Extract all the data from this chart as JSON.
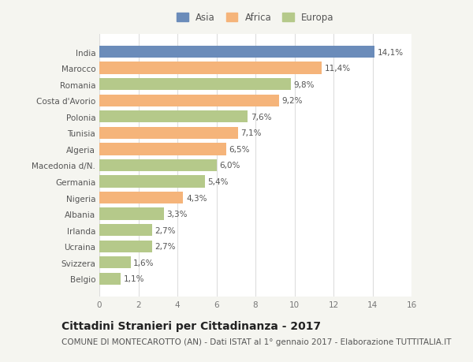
{
  "categories": [
    "India",
    "Marocco",
    "Romania",
    "Costa d'Avorio",
    "Polonia",
    "Tunisia",
    "Algeria",
    "Macedonia d/N.",
    "Germania",
    "Nigeria",
    "Albania",
    "Irlanda",
    "Ucraina",
    "Svizzera",
    "Belgio"
  ],
  "values": [
    14.1,
    11.4,
    9.8,
    9.2,
    7.6,
    7.1,
    6.5,
    6.0,
    5.4,
    4.3,
    3.3,
    2.7,
    2.7,
    1.6,
    1.1
  ],
  "labels": [
    "14,1%",
    "11,4%",
    "9,8%",
    "9,2%",
    "7,6%",
    "7,1%",
    "6,5%",
    "6,0%",
    "5,4%",
    "4,3%",
    "3,3%",
    "2,7%",
    "2,7%",
    "1,6%",
    "1,1%"
  ],
  "colors": [
    "#6b8cba",
    "#f5b47a",
    "#b5c98a",
    "#f5b47a",
    "#b5c98a",
    "#f5b47a",
    "#f5b47a",
    "#b5c98a",
    "#b5c98a",
    "#f5b47a",
    "#b5c98a",
    "#b5c98a",
    "#b5c98a",
    "#b5c98a",
    "#b5c98a"
  ],
  "legend_labels": [
    "Asia",
    "Africa",
    "Europa"
  ],
  "legend_colors": [
    "#6b8cba",
    "#f5b47a",
    "#b5c98a"
  ],
  "title": "Cittadini Stranieri per Cittadinanza - 2017",
  "subtitle": "COMUNE DI MONTECAROTTO (AN) - Dati ISTAT al 1° gennaio 2017 - Elaborazione TUTTITALIA.IT",
  "xlim": [
    0,
    16
  ],
  "xticks": [
    0,
    2,
    4,
    6,
    8,
    10,
    12,
    14,
    16
  ],
  "background_color": "#f5f5f0",
  "plot_background": "#ffffff",
  "grid_color": "#dddddd",
  "title_fontsize": 10,
  "subtitle_fontsize": 7.5,
  "label_fontsize": 7.5,
  "tick_fontsize": 7.5,
  "bar_height": 0.75
}
